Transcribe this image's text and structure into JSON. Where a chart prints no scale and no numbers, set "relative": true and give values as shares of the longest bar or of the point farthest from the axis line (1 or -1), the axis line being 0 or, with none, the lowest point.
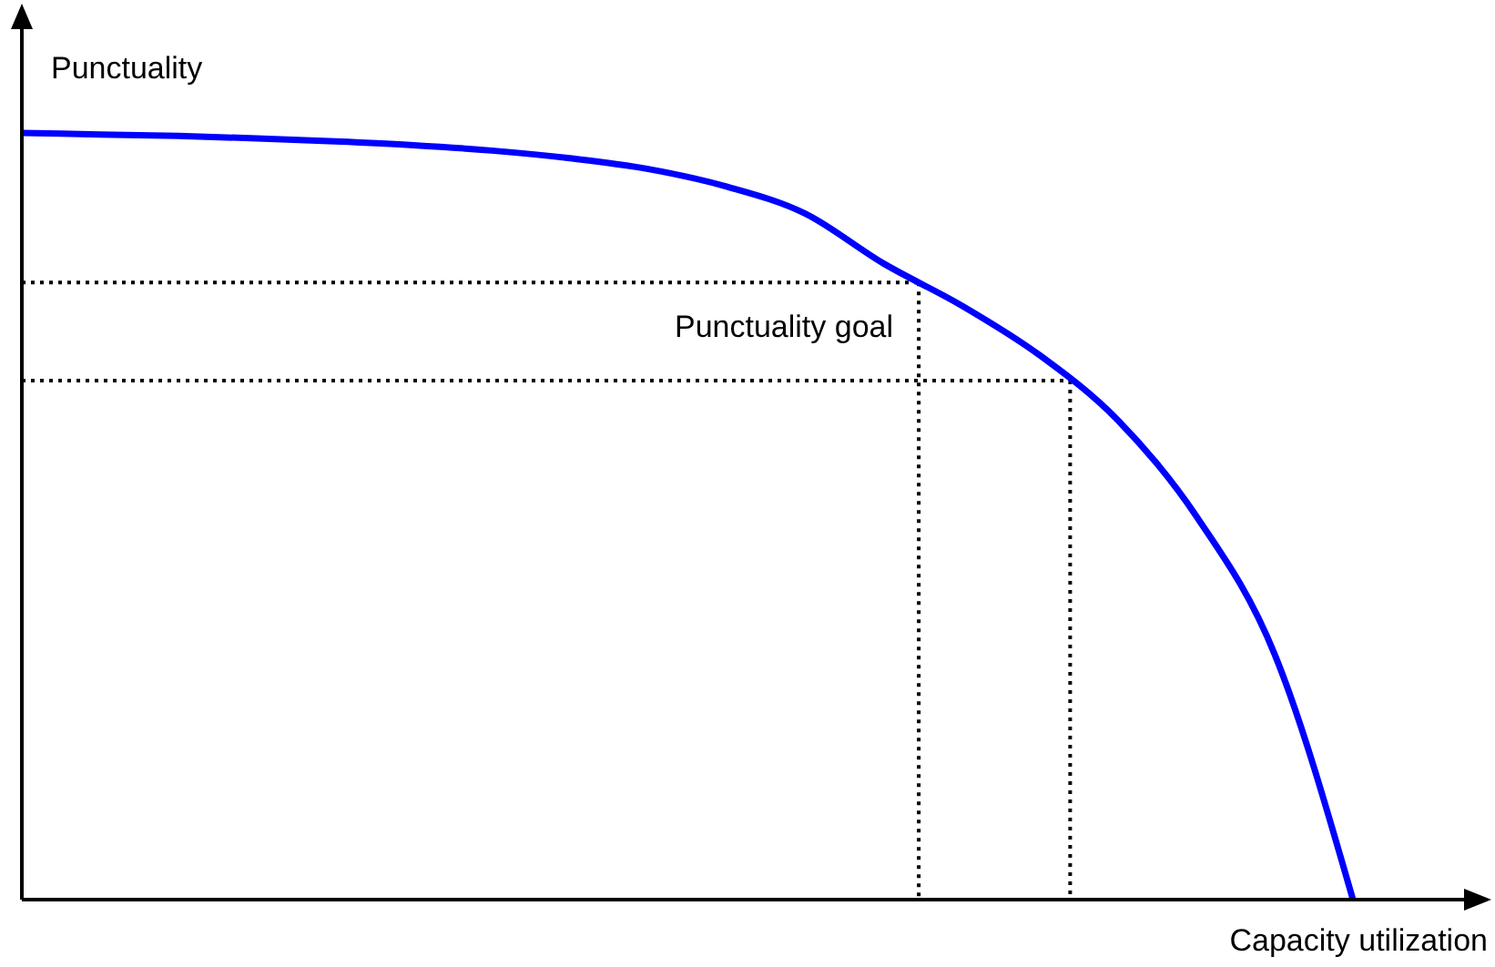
{
  "chart_data": {
    "type": "line",
    "relative": true,
    "xlabel": "Capacity utilization",
    "ylabel": "Punctuality",
    "categories": [
      null,
      null,
      null,
      null,
      null,
      null,
      null,
      null,
      null,
      null,
      null,
      null,
      null,
      null,
      null,
      null,
      null,
      null
    ],
    "series": [
      {
        "color": "#0000ff",
        "values": [
          1,
          0.998,
          0.996,
          0.993,
          0.989,
          0.984,
          0.977,
          0.967,
          0.953,
          0.93,
          0.895,
          0.83,
          0.775,
          0.71,
          0.625,
          0.5,
          0.32,
          0
        ]
      }
    ],
    "ref_lines": [
      {
        "axis": "y",
        "value": 0.805,
        "label": "Punctuality goal",
        "line_style": "dotted"
      },
      {
        "axis": "y",
        "value": 0.677,
        "line_style": "dotted"
      }
    ]
  }
}
